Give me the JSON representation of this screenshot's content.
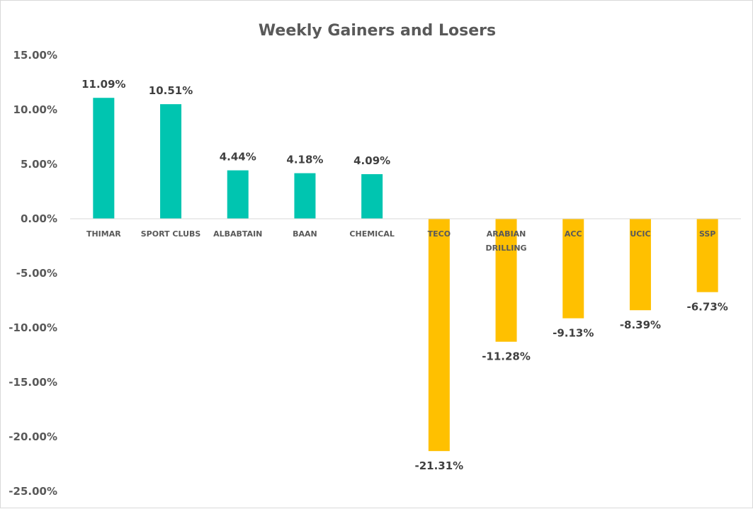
{
  "chart_data": {
    "type": "bar",
    "title": "Weekly Gainers and Losers",
    "xlabel": "",
    "ylabel": "",
    "ylim": [
      -25,
      15
    ],
    "yticks": [
      15,
      10,
      5,
      0,
      -5,
      -10,
      -15,
      -20,
      -25
    ],
    "ytick_labels": [
      "15.00%",
      "10.00%",
      "5.00%",
      "0.00%",
      "-5.00%",
      "-10.00%",
      "-15.00%",
      "-20.00%",
      "-25.00%"
    ],
    "categories": [
      [
        "THIMAR"
      ],
      [
        "SPORT CLUBS"
      ],
      [
        "ALBABTAIN"
      ],
      [
        "BAAN"
      ],
      [
        "CHEMICAL"
      ],
      [
        "TECO"
      ],
      [
        "ARABIAN",
        "DRILLING"
      ],
      [
        "ACC"
      ],
      [
        "UCIC"
      ],
      [
        "SSP"
      ]
    ],
    "values": [
      11.09,
      10.51,
      4.44,
      4.18,
      4.09,
      -21.31,
      -11.28,
      -9.13,
      -8.39,
      -6.73
    ],
    "data_labels": [
      "11.09%",
      "10.51%",
      "4.44%",
      "4.18%",
      "4.09%",
      "-21.31%",
      "-11.28%",
      "-9.13%",
      "-8.39%",
      "-6.73%"
    ],
    "colors": {
      "gainer": "#00C5B0",
      "loser": "#FFC000"
    },
    "grid": false,
    "legend": "none"
  }
}
